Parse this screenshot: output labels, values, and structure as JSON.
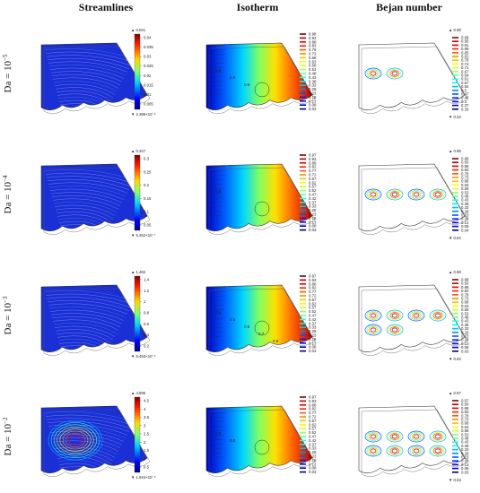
{
  "headers": [
    "Streamlines",
    "Isotherm",
    "Bejan number"
  ],
  "rows": [
    {
      "label_base": "Da = 10",
      "label_exp": "−5",
      "stream": {
        "max": "▲ 0.041",
        "min": "▼ 2.385×10⁻⁵",
        "ticks": [
          "0.04",
          "0.035",
          "0.03",
          "0.025",
          "0.02",
          "0.015",
          "0.01",
          "0.005"
        ]
      },
      "iso": {
        "labels": [
          "0.98",
          "0.93",
          "0.88",
          "0.83",
          "0.78",
          "0.73",
          "0.68",
          "0.63",
          "0.58",
          "0.53",
          "0.48",
          "0.43",
          "0.38",
          "0.33",
          "0.28",
          "0.23",
          "0.18",
          "0.13",
          "0.08",
          "0.03"
        ],
        "contour_labels": [
          "0.4",
          "0.5",
          "0.6"
        ]
      },
      "bejan": {
        "max": "▲ 0.98",
        "min": "▼ 0.33",
        "labels": [
          "0.98",
          "0.95",
          "0.91",
          "0.88",
          "0.85",
          "0.81",
          "0.78",
          "0.74",
          "0.71",
          "0.67",
          "0.64",
          "0.61",
          "0.57",
          "0.54",
          "0.5",
          "0.47",
          "0.43",
          "0.4",
          "0.37",
          "0.33"
        ]
      }
    },
    {
      "label_base": "Da = 10",
      "label_exp": "−4",
      "stream": {
        "max": "▲ 0.327",
        "min": "▼ 5.252×10⁻⁷",
        "ticks": [
          "0.3",
          "0.25",
          "0.2",
          "0.15",
          "0.1",
          "0.05"
        ]
      },
      "iso": {
        "labels": [
          "0.97",
          "0.93",
          "0.88",
          "0.82",
          "0.77",
          "0.72",
          "0.67",
          "0.62",
          "0.57",
          "0.52",
          "0.47",
          "0.42",
          "0.37",
          "0.33",
          "0.28",
          "0.23",
          "0.18",
          "0.13",
          "0.08",
          "0.03"
        ],
        "contour_labels": [
          "0.6"
        ]
      },
      "bejan": {
        "max": "▲ 0.98",
        "min": "▼ 0.04",
        "labels": [
          "0.98",
          "0.93",
          "0.88",
          "0.83",
          "0.78",
          "0.73",
          "0.68",
          "0.63",
          "0.58",
          "0.53",
          "0.48",
          "0.43",
          "0.38",
          "0.33",
          "0.28",
          "0.23",
          "0.18",
          "0.14",
          "0.09",
          "0.04"
        ]
      }
    },
    {
      "label_base": "Da = 10",
      "label_exp": "−3",
      "stream": {
        "max": "▲ 1.482",
        "min": "▼ 6.453×10⁻⁶",
        "ticks": [
          "1.4",
          "1.2",
          "1",
          "0.8",
          "0.6",
          "0.4",
          "0.2"
        ]
      },
      "iso": {
        "labels": [
          "0.97",
          "0.93",
          "0.88",
          "0.82",
          "0.77",
          "0.72",
          "0.67",
          "0.62",
          "0.57",
          "0.52",
          "0.47",
          "0.42",
          "0.37",
          "0.33",
          "0.28",
          "0.23",
          "0.18",
          "0.13",
          "0.08",
          "0.03"
        ],
        "contour_labels": [
          "0.4",
          "0.5",
          "0.6",
          "0.7",
          "0.8"
        ]
      },
      "bejan": {
        "max": "▲ 0.98",
        "min": "▼ 0.03",
        "labels": [
          "0.98",
          "0.93",
          "0.88",
          "0.83",
          "0.78",
          "0.73",
          "0.68",
          "0.63",
          "0.58",
          "0.53",
          "0.48",
          "0.43",
          "0.38",
          "0.33",
          "0.28",
          "0.23",
          "0.18",
          "0.13",
          "0.08",
          "0.03"
        ]
      }
    },
    {
      "label_base": "Da = 10",
      "label_exp": "−2",
      "stream": {
        "max": "▲ 4.896",
        "min": "▼ 1.934×10⁻⁶",
        "ticks": [
          "4.5",
          "4",
          "3.5",
          "3",
          "2.5",
          "2",
          "1.5",
          "1",
          "0.5"
        ]
      },
      "iso": {
        "labels": [
          "0.97",
          "0.93",
          "0.88",
          "0.82",
          "0.77",
          "0.72",
          "0.67",
          "0.62",
          "0.57",
          "0.52",
          "0.47",
          "0.42",
          "0.37",
          "0.33",
          "0.28",
          "0.23",
          "0.18",
          "0.13",
          "0.08",
          "0.03"
        ],
        "contour_labels": [
          "0.3",
          "0.5"
        ]
      },
      "bejan": {
        "max": "▲ 0.97",
        "min": "▼ 0.03",
        "labels": [
          "0.97",
          "0.93",
          "0.88",
          "0.83",
          "0.78",
          "0.73",
          "0.68",
          "0.63",
          "0.58",
          "0.53",
          "0.48",
          "0.43",
          "0.38",
          "0.33",
          "0.28",
          "0.23",
          "0.18",
          "0.13",
          "0.08",
          "0.03"
        ]
      }
    }
  ]
}
